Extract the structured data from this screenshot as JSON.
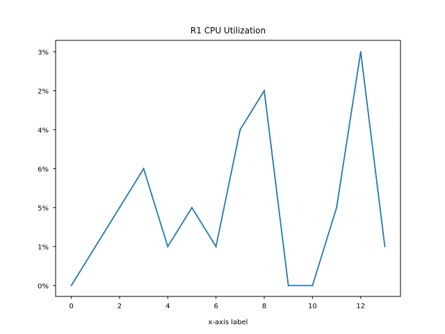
{
  "chart_data": {
    "type": "line",
    "title": "R1 CPU Utilization",
    "xlabel": "x-axis label",
    "ylabel": "",
    "x": [
      0,
      1,
      2,
      3,
      4,
      5,
      6,
      7,
      8,
      9,
      10,
      11,
      12,
      13
    ],
    "y_categories": [
      "0%",
      "1%",
      "5%",
      "6%",
      "4%",
      "2%",
      "3%"
    ],
    "series": [
      {
        "values": [
          "0%",
          "1%",
          "5%",
          "6%",
          "1%",
          "5%",
          "1%",
          "4%",
          "2%",
          "0%",
          "0%",
          "5%",
          "3%",
          "1%"
        ],
        "color": "#1f77b4"
      }
    ],
    "xticks": [
      "0",
      "2",
      "4",
      "6",
      "8",
      "10",
      "12"
    ],
    "xlim": [
      -0.65,
      13.65
    ],
    "grid": false
  }
}
